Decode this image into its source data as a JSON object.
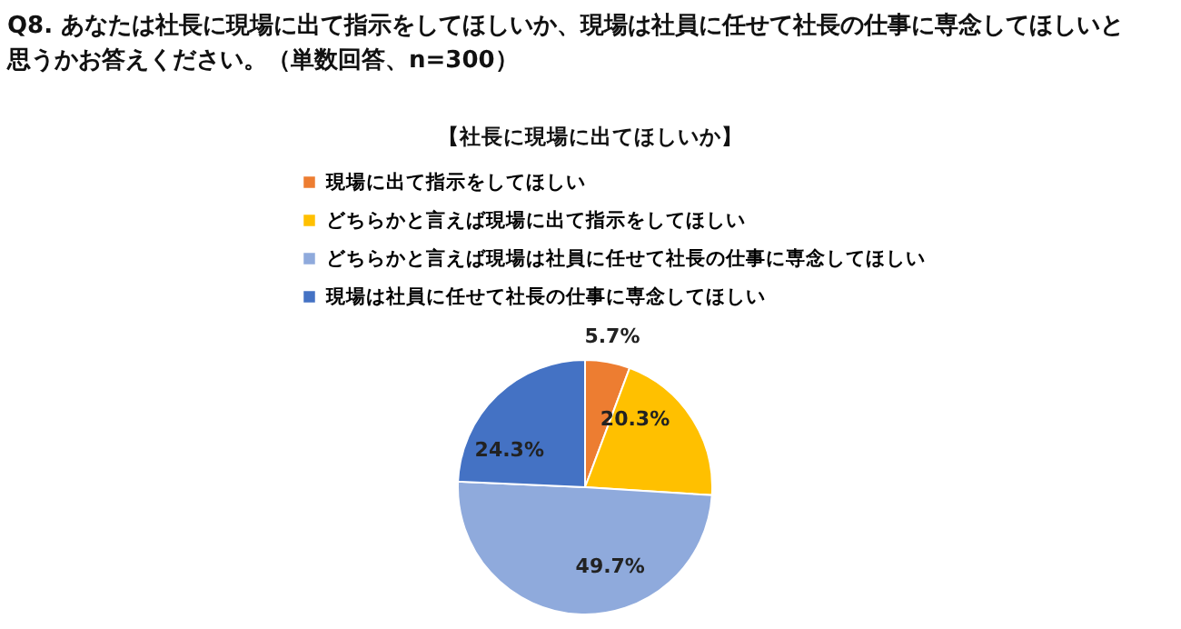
{
  "chart_data": {
    "type": "pie",
    "title": "Q8. あなたは社長に現場に出て指示をしてほしいか、現場は社員に任せて社長の仕事に専念してほしいと思うかお答えください。（単数回答、n=300）",
    "subtitle": "【社長に現場に出てほしいか】",
    "categories": [
      "現場に出て指示をしてほしい",
      "どちらかと言えば現場に出て指示をしてほしい",
      "どちらかと言えば現場は社員に任せて社長の仕事に専念してほしい",
      "現場は社員に任せて社長の仕事に専念してほしい"
    ],
    "values": [
      5.7,
      20.3,
      49.7,
      24.3
    ],
    "colors": [
      "#ed7d31",
      "#ffc000",
      "#8faadc",
      "#4472c4"
    ],
    "value_labels": [
      "5.7%",
      "20.3%",
      "49.7%",
      "24.3%"
    ],
    "legend": "top"
  }
}
